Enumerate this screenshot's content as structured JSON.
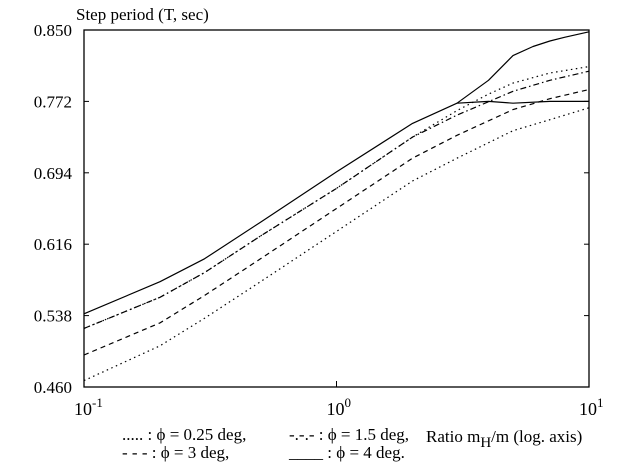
{
  "chart_data": {
    "type": "line",
    "ylabel": "Step period (T, sec)",
    "xlabel": {
      "prefix": "Ratio m",
      "sub": "H",
      "suffix": "/m  (log. axis)"
    },
    "xscale": "log",
    "xlim": [
      0.1,
      10
    ],
    "ylim": [
      0.46,
      0.85
    ],
    "yticks": [
      "0.850",
      "0.772",
      "0.694",
      "0.616",
      "0.538",
      "0.460"
    ],
    "xticks": [
      {
        "base": "10",
        "exp": "-1",
        "value": 0.1
      },
      {
        "base": "10",
        "exp": "0",
        "value": 1
      },
      {
        "base": "10",
        "exp": "1",
        "value": 10
      }
    ],
    "grid": false,
    "legend_position": "bottom",
    "legend": [
      {
        "symbol": ".....",
        "sep": ":",
        "phi": "ϕ",
        "text": "= 0.25 deg,",
        "style": "dotted"
      },
      {
        "symbol": "-.-.-",
        "sep": ":",
        "phi": "ϕ",
        "text": "= 1.5 deg,",
        "style": "dashdot"
      },
      {
        "symbol": "- - -",
        "sep": ":",
        "phi": "ϕ",
        "text": "= 3 deg,",
        "style": "dashed"
      },
      {
        "symbol": "____",
        "sep": ":",
        "phi": "ϕ",
        "text": "= 4 deg.",
        "style": "solid"
      }
    ],
    "series": [
      {
        "style": "dotted",
        "x": [
          0.1,
          0.2,
          0.3,
          0.5,
          1,
          2,
          3,
          5,
          7,
          10
        ],
        "y": [
          0.467,
          0.505,
          0.535,
          0.575,
          0.63,
          0.685,
          0.71,
          0.74,
          0.752,
          0.765
        ]
      },
      {
        "style": "dashed",
        "x": [
          0.1,
          0.2,
          0.3,
          0.5,
          1,
          2,
          3,
          5,
          7,
          10
        ],
        "y": [
          0.495,
          0.53,
          0.56,
          0.6,
          0.655,
          0.71,
          0.735,
          0.763,
          0.775,
          0.785
        ]
      },
      {
        "style": "dashdot",
        "x": [
          0.1,
          0.2,
          0.3,
          0.5,
          1,
          2,
          3,
          5,
          7,
          10
        ],
        "y": [
          0.524,
          0.558,
          0.585,
          0.625,
          0.677,
          0.733,
          0.757,
          0.783,
          0.795,
          0.805
        ]
      },
      {
        "style": "dotted",
        "x": [
          0.1,
          0.2,
          0.3,
          0.5,
          1,
          2,
          3,
          4,
          5,
          7,
          10
        ],
        "y": [
          0.524,
          0.558,
          0.585,
          0.625,
          0.677,
          0.733,
          0.762,
          0.78,
          0.792,
          0.803,
          0.81
        ]
      },
      {
        "style": "solid",
        "x": [
          0.1,
          0.2,
          0.3,
          0.5,
          1,
          2,
          3,
          4,
          5,
          7,
          10
        ],
        "y": [
          0.54,
          0.575,
          0.6,
          0.64,
          0.695,
          0.748,
          0.77,
          0.772,
          0.77,
          0.772,
          0.772
        ]
      },
      {
        "style": "solid",
        "x": [
          3,
          4,
          5,
          6,
          7,
          8,
          10
        ],
        "y": [
          0.77,
          0.795,
          0.822,
          0.832,
          0.838,
          0.842,
          0.848
        ]
      }
    ]
  }
}
